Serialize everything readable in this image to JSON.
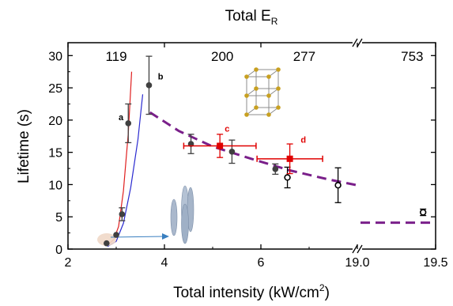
{
  "chart_data": {
    "type": "scatter",
    "title": "Total E",
    "title_subscript": "R",
    "xlabel_main": "Total intensity (kW/cm",
    "xlabel_sup": "2",
    "xlabel_end": ")",
    "ylabel": "Lifetime (s)",
    "xlim": [
      2,
      19.5
    ],
    "ylim": [
      0,
      32
    ],
    "axis_break_after": 8,
    "break_resume": 19.0,
    "x_ticks": [
      {
        "value": 2,
        "label": "2"
      },
      {
        "value": 4,
        "label": "4"
      },
      {
        "value": 6,
        "label": "6"
      },
      {
        "value": 19.0,
        "label": "19.0"
      },
      {
        "value": 19.5,
        "label": "19.5"
      }
    ],
    "y_ticks": [
      {
        "value": 0,
        "label": "0"
      },
      {
        "value": 5,
        "label": "5"
      },
      {
        "value": 10,
        "label": "10"
      },
      {
        "value": 15,
        "label": "15"
      },
      {
        "value": 20,
        "label": "20"
      },
      {
        "value": 25,
        "label": "25"
      },
      {
        "value": 30,
        "label": "30"
      }
    ],
    "top_axis_values": [
      {
        "x": 3.0,
        "label": "119"
      },
      {
        "x": 5.2,
        "label": "200"
      },
      {
        "x": 6.9,
        "label": "277"
      },
      {
        "x": 19.35,
        "label": "753"
      }
    ],
    "series": [
      {
        "marker": "filled-circle",
        "color": "#404040",
        "points": [
          {
            "x": 2.8,
            "y": 0.9,
            "err": 0
          },
          {
            "x": 3.0,
            "y": 2.2,
            "err": 0
          },
          {
            "x": 3.12,
            "y": 5.4,
            "err": 1.0
          },
          {
            "x": 3.25,
            "y": 19.5,
            "err": 3.0
          },
          {
            "x": 3.68,
            "y": 25.4,
            "err": 4.5
          },
          {
            "x": 4.55,
            "y": 16.3,
            "err": 1.5
          },
          {
            "x": 5.4,
            "y": 15.1,
            "err": 1.8
          },
          {
            "x": 6.3,
            "y": 12.4,
            "err": 0.8
          }
        ]
      },
      {
        "marker": "open-circle",
        "color": "#000000",
        "points": [
          {
            "x": 6.55,
            "y": 11.1,
            "err": 1.6
          },
          {
            "x": 7.6,
            "y": 9.9,
            "err": 2.7
          },
          {
            "x": 19.42,
            "y": 5.7,
            "err": 0.5
          }
        ]
      },
      {
        "marker": "filled-square",
        "color": "#e00000",
        "points": [
          {
            "x": 5.15,
            "y": 16.0,
            "err": 1.8,
            "xerr": 0.75
          },
          {
            "x": 6.6,
            "y": 14.0,
            "err": 2.3,
            "xerr": 0.68
          }
        ]
      }
    ],
    "point_labels": [
      {
        "x": 3.1,
        "y": 20.0,
        "text": "a",
        "color": "#000000"
      },
      {
        "x": 3.92,
        "y": 26.3,
        "text": "b",
        "color": "#000000"
      },
      {
        "x": 5.3,
        "y": 18.2,
        "text": "c",
        "color": "#e00000"
      },
      {
        "x": 6.88,
        "y": 16.5,
        "text": "d",
        "color": "#e00000"
      }
    ],
    "fit_lines": [
      {
        "color": "#e02020",
        "points": [
          [
            2.82,
            0.6
          ],
          [
            2.95,
            1.5
          ],
          [
            3.05,
            3.5
          ],
          [
            3.15,
            9.0
          ],
          [
            3.25,
            18.0
          ],
          [
            3.32,
            27.5
          ]
        ]
      },
      {
        "color": "#2a2ad0",
        "points": [
          [
            2.82,
            0.4
          ],
          [
            3.0,
            1.2
          ],
          [
            3.15,
            4.0
          ],
          [
            3.3,
            9.5
          ],
          [
            3.45,
            17.0
          ],
          [
            3.55,
            24.0
          ]
        ]
      }
    ],
    "trend_line": {
      "color": "#7a1f8a",
      "segments": [
        [
          [
            3.7,
            21.2
          ],
          [
            4.3,
            18.3
          ],
          [
            5.0,
            15.9
          ],
          [
            5.8,
            14.0
          ],
          [
            6.6,
            12.2
          ],
          [
            7.4,
            10.8
          ],
          [
            8.0,
            9.9
          ]
        ],
        [
          [
            19.02,
            4.1
          ],
          [
            19.5,
            4.1
          ]
        ]
      ]
    },
    "colors": {
      "axis": "#000000",
      "filled_marker": "#404040",
      "highlight": "#e00000",
      "trend": "#7a1f8a",
      "lattice_node": "#c8a020",
      "blob": "#aab8cc",
      "arrow": "#3a7fc0",
      "glow": "#f0d8c8"
    },
    "icons": [
      "cubic-lattice-icon",
      "elongated-cloud-icon",
      "axis-break-mark"
    ],
    "grid": false,
    "legend": "none"
  }
}
